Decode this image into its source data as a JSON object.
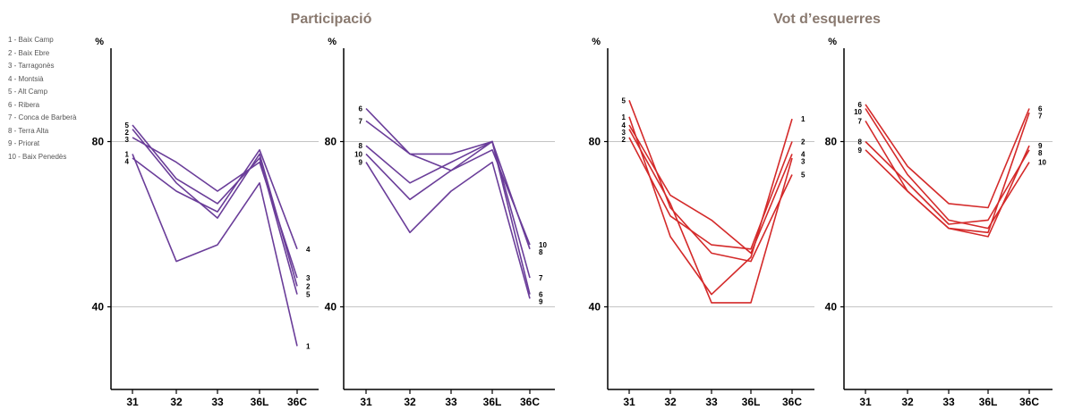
{
  "legend": [
    "1 - Baix Camp",
    "2 - Baix Ebre",
    "3 - Tarragonès",
    "4 - Montsià",
    "5 - Alt Camp",
    "6 - Ribera",
    "7 - Conca de Barberà",
    "8 - Terra Alta",
    "9 - Priorat",
    "10 - Baix Penedès"
  ],
  "colors": {
    "participation": "#6a3d99",
    "left_vote": "#d42a2a",
    "title": "#8a7a70",
    "grid": "#b0b0b0"
  },
  "chart_data": [
    {
      "type": "line",
      "group_title": "Participació",
      "ylabel": "%",
      "categories": [
        "31",
        "32",
        "33",
        "36L",
        "36C"
      ],
      "ylim": [
        20,
        100
      ],
      "yticks": [
        40,
        80
      ],
      "grid": true,
      "series": [
        {
          "name": "1",
          "values": [
            77,
            51,
            55,
            70,
            30.5
          ]
        },
        {
          "name": "2",
          "values": [
            83,
            70,
            61.5,
            77,
            45
          ]
        },
        {
          "name": "3",
          "values": [
            81,
            75,
            68,
            75,
            47
          ]
        },
        {
          "name": "4",
          "values": [
            76,
            68,
            63,
            78,
            54
          ]
        },
        {
          "name": "5",
          "values": [
            84,
            71,
            65,
            76,
            43
          ]
        }
      ]
    },
    {
      "type": "line",
      "group_title": "Participació",
      "ylabel": "%",
      "categories": [
        "31",
        "32",
        "33",
        "36L",
        "36C"
      ],
      "ylim": [
        20,
        100
      ],
      "yticks": [
        40,
        80
      ],
      "grid": true,
      "series": [
        {
          "name": "6",
          "values": [
            88,
            77,
            77,
            80,
            43
          ]
        },
        {
          "name": "7",
          "values": [
            85,
            77,
            73,
            80,
            47
          ]
        },
        {
          "name": "8",
          "values": [
            79,
            70,
            75,
            80,
            54
          ]
        },
        {
          "name": "9",
          "values": [
            75,
            58,
            68,
            75,
            42
          ]
        },
        {
          "name": "10",
          "values": [
            77,
            66,
            73,
            78,
            55
          ]
        }
      ]
    },
    {
      "type": "line",
      "group_title": "Vot d’esquerres",
      "ylabel": "%",
      "categories": [
        "31",
        "32",
        "33",
        "36L",
        "36C"
      ],
      "ylim": [
        20,
        100
      ],
      "yticks": [
        40,
        80
      ],
      "grid": true,
      "series": [
        {
          "name": "1",
          "values": [
            86,
            57,
            43,
            52,
            85.5
          ]
        },
        {
          "name": "2",
          "values": [
            81,
            62,
            55,
            54,
            80
          ]
        },
        {
          "name": "3",
          "values": [
            83,
            65,
            41,
            41,
            76
          ]
        },
        {
          "name": "4",
          "values": [
            84,
            67,
            61,
            53,
            77
          ]
        },
        {
          "name": "5",
          "values": [
            90,
            64,
            53,
            51,
            72
          ]
        }
      ]
    },
    {
      "type": "line",
      "group_title": "Vot d’esquerres",
      "ylabel": "%",
      "categories": [
        "31",
        "32",
        "33",
        "36L",
        "36C"
      ],
      "ylim": [
        20,
        100
      ],
      "yticks": [
        40,
        80
      ],
      "grid": true,
      "series": [
        {
          "name": "6",
          "values": [
            89,
            74,
            65,
            64,
            88
          ]
        },
        {
          "name": "7",
          "values": [
            85,
            68,
            59,
            58,
            87
          ]
        },
        {
          "name": "8",
          "values": [
            80,
            70,
            60,
            61,
            78
          ]
        },
        {
          "name": "9",
          "values": [
            78,
            68,
            59,
            57,
            79
          ]
        },
        {
          "name": "10",
          "values": [
            88,
            72,
            61,
            59,
            75
          ]
        }
      ]
    }
  ]
}
